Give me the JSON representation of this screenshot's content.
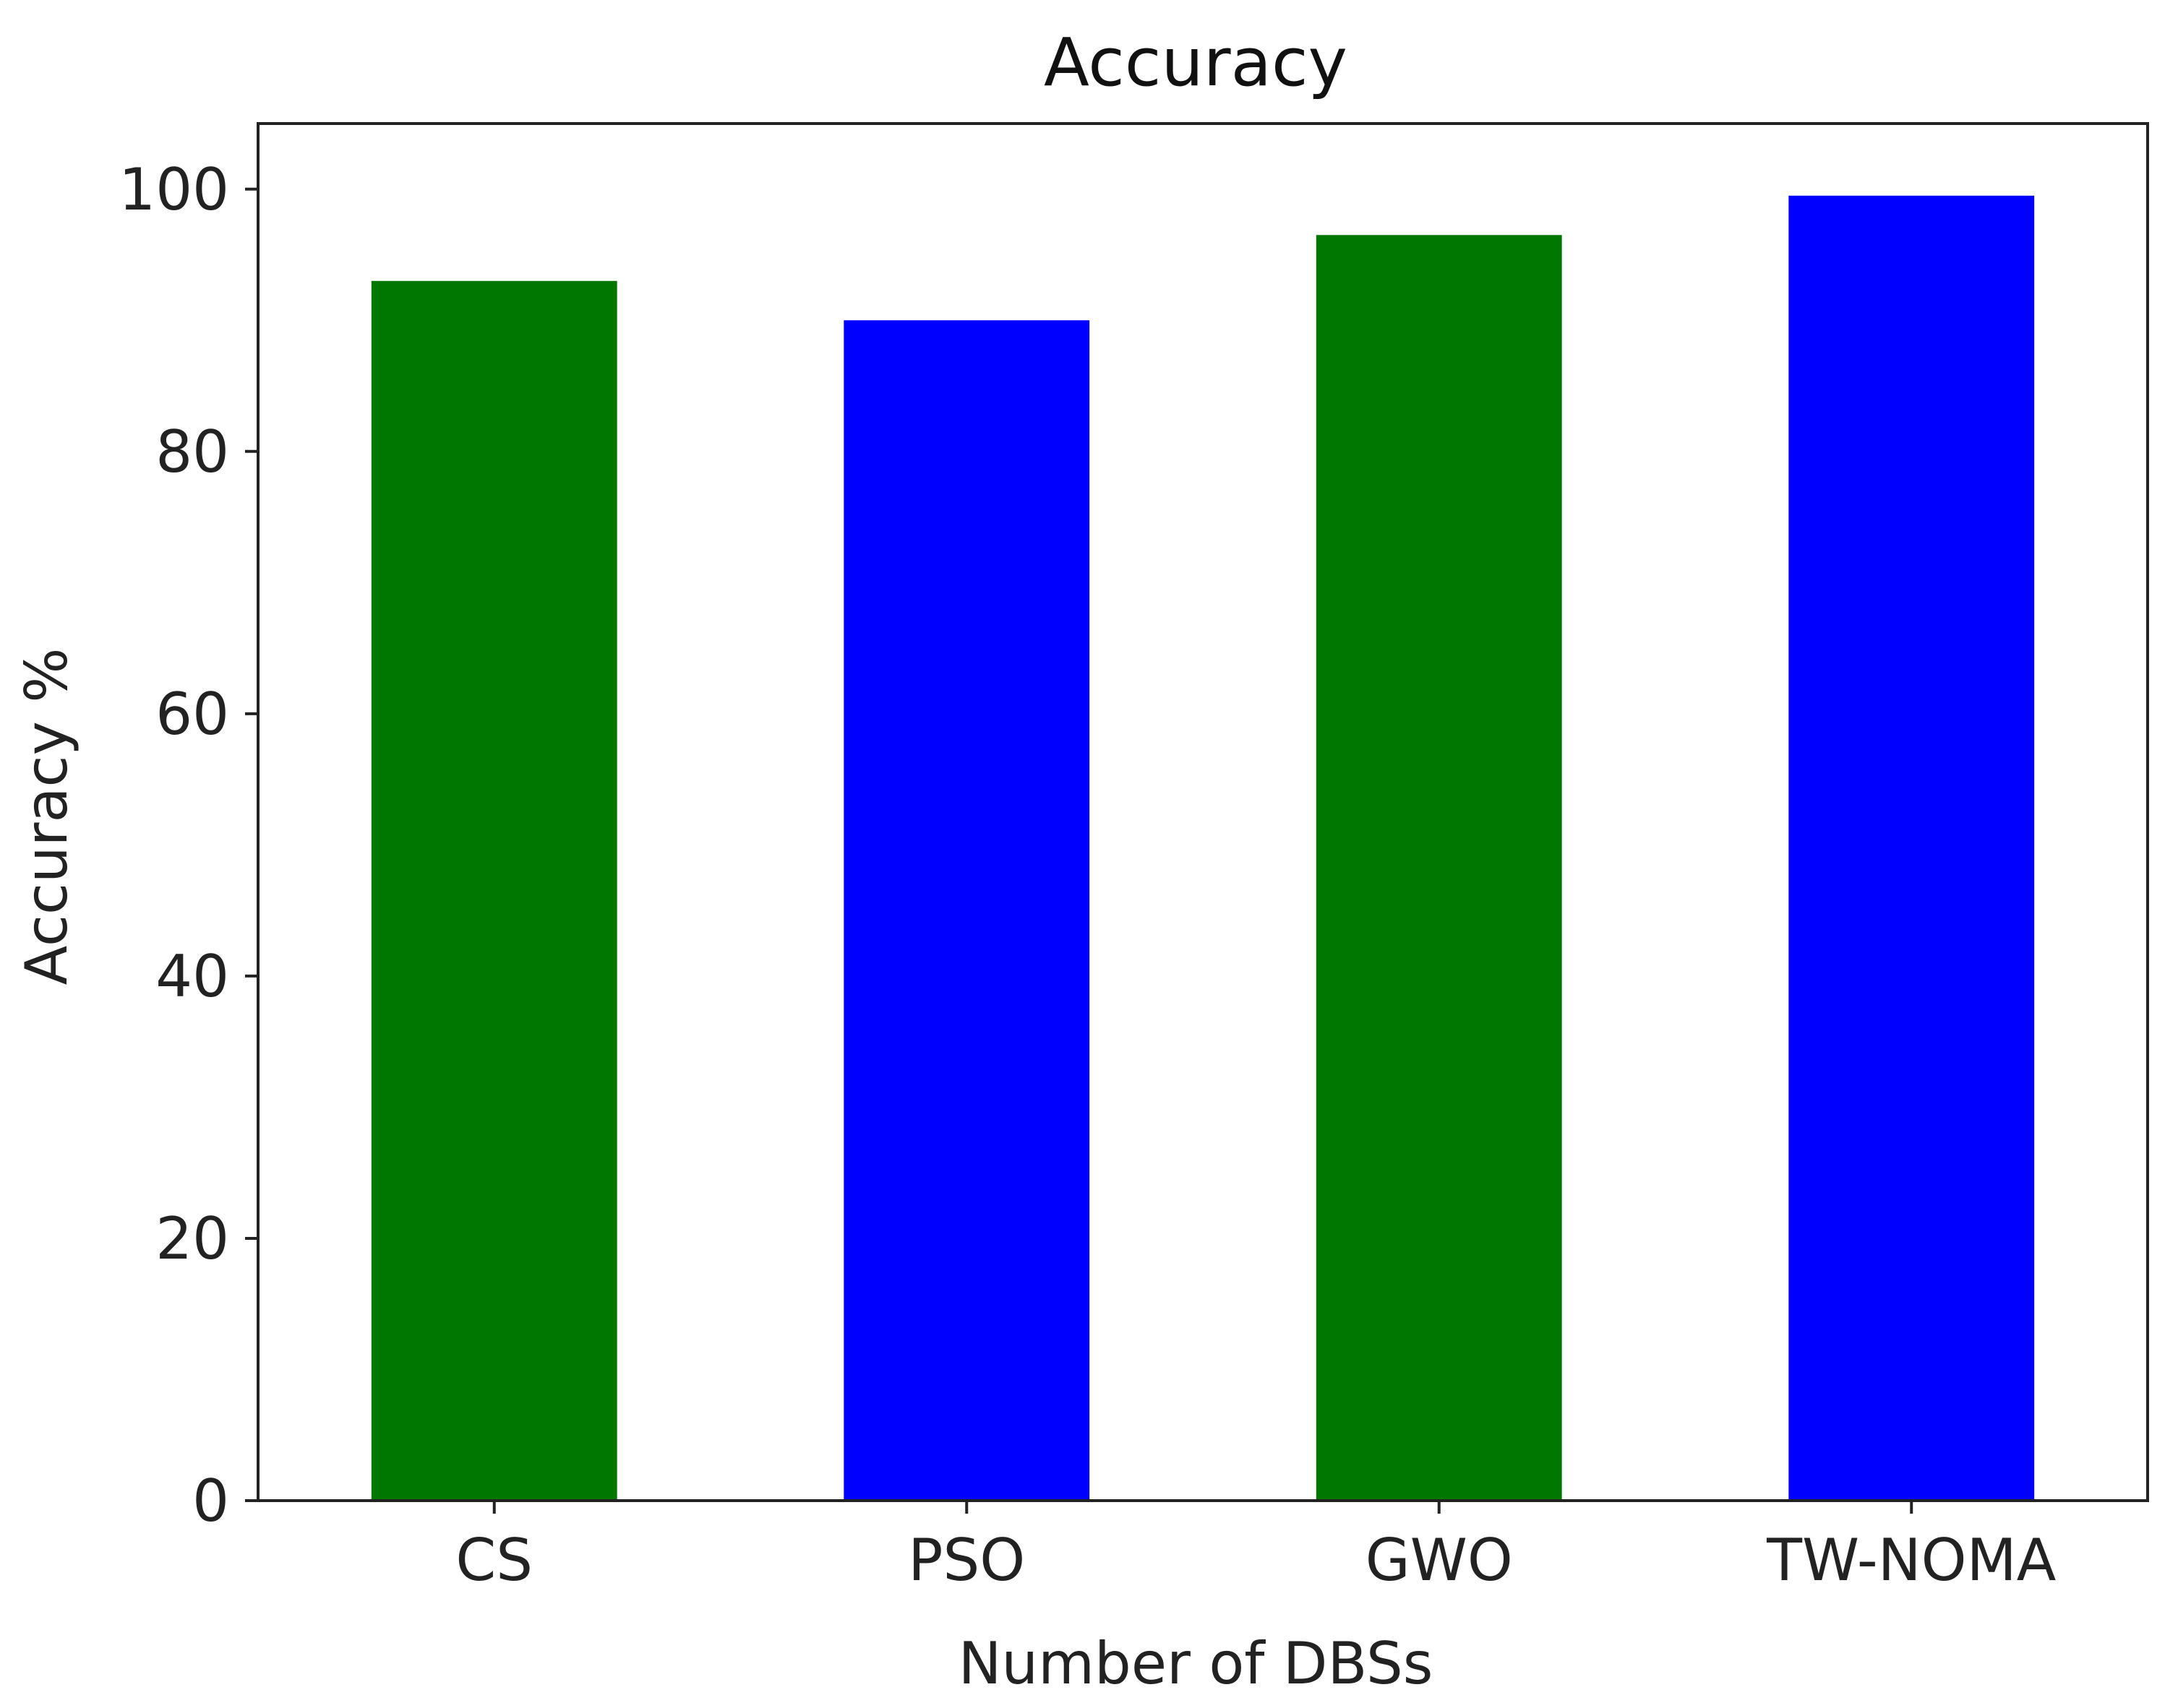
{
  "chart_data": {
    "type": "bar",
    "title": "Accuracy",
    "xlabel": "Number of DBSs",
    "ylabel": "Accuracy %",
    "categories": [
      "CS",
      "PSO",
      "GWO",
      "TW-NOMA"
    ],
    "values": [
      93,
      90,
      96.5,
      99.5
    ],
    "bar_colors": [
      "#007700",
      "#0000ff",
      "#007700",
      "#0000ff"
    ],
    "ylim": [
      0,
      105
    ],
    "yticks": [
      0,
      20,
      40,
      60,
      80,
      100
    ],
    "grid": false,
    "legend": "none"
  }
}
